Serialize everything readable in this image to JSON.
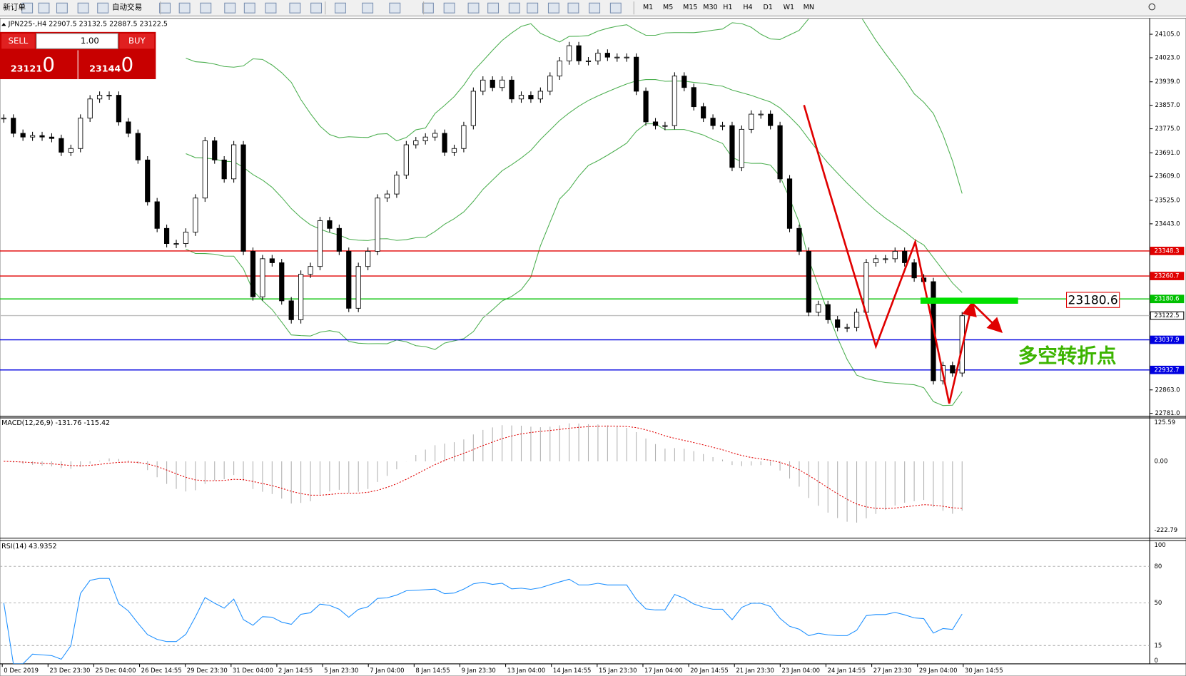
{
  "toolbar": {
    "new_order": "新订单",
    "auto_trading": "自动交易",
    "timeframes": [
      "M1",
      "M5",
      "M15",
      "M30",
      "H1",
      "H4",
      "D1",
      "W1",
      "MN"
    ]
  },
  "trade_panel": {
    "sell": "SELL",
    "buy": "BUY",
    "lots": "1.00",
    "bid_main": "23121",
    "bid_big": "0",
    "ask_main": "23144",
    "ask_big": "0"
  },
  "chart_header": "JPN225-,H4  22907.5 23132.5 22887.5 23122.5",
  "price_chart": {
    "closes": [
      23812,
      23759,
      23746,
      23751,
      23746,
      23741,
      23693,
      23706,
      23812,
      23879,
      23892,
      23892,
      23799,
      23759,
      23666,
      23520,
      23427,
      23374,
      23374,
      23414,
      23533,
      23733,
      23666,
      23600,
      23719,
      23347,
      23188,
      23321,
      23307,
      23174,
      23108,
      23267,
      23294,
      23454,
      23427,
      23347,
      23148,
      23294,
      23347,
      23533,
      23547,
      23613,
      23719,
      23733,
      23746,
      23759,
      23693,
      23706,
      23786,
      23906,
      23945,
      23919,
      23945,
      23879,
      23892,
      23879,
      23906,
      23959,
      24012,
      24065,
      24012,
      24012,
      24039,
      24025,
      24025,
      24025,
      23906,
      23799,
      23786,
      23786,
      23959,
      23919,
      23852,
      23812,
      23786,
      23786,
      23640,
      23773,
      23826,
      23826,
      23786,
      23600,
      23427,
      23347,
      23134,
      23161,
      23108,
      23081,
      23081,
      23134,
      23307,
      23321,
      23321,
      23347,
      23307,
      23254,
      23241,
      22895,
      22948,
      22922,
      23122
    ],
    "axis_labels": [
      "24105.0",
      "24023.0",
      "23939.0",
      "23857.0",
      "23775.0",
      "23691.0",
      "23609.0",
      "23525.0",
      "23443.0",
      "22863.0",
      "22781.0"
    ],
    "price_lines": [
      {
        "label": "23348.3",
        "color": "#e00000"
      },
      {
        "label": "23260.7",
        "color": "#e00000"
      },
      {
        "label": "23180.6",
        "color": "#00c000"
      },
      {
        "label": "23122.5",
        "color": "#c0c0c0"
      },
      {
        "label": "23037.9",
        "color": "#0000e0"
      },
      {
        "label": "22932.7",
        "color": "#0000e0"
      }
    ],
    "annotation_price": "23180.6",
    "annotation_text": "多空转折点"
  },
  "macd": {
    "title": "MACD(12,26,9) -131.76 -115.42",
    "axis_labels": [
      "125.59",
      "0.00",
      "-222.79"
    ]
  },
  "rsi": {
    "title": "RSI(14) 43.9352",
    "axis_labels": [
      "100",
      "80",
      "50",
      "15",
      "0"
    ]
  },
  "time_labels": [
    "0 Dec 2019",
    "23 Dec 23:30",
    "25 Dec 04:00",
    "26 Dec 14:55",
    "29 Dec 23:30",
    "31 Dec 04:00",
    "2 Jan 14:55",
    "5 Jan 23:30",
    "7 Jan 04:00",
    "8 Jan 14:55",
    "9 Jan 23:30",
    "13 Jan 04:00",
    "14 Jan 14:55",
    "15 Jan 23:30",
    "17 Jan 04:00",
    "20 Jan 14:55",
    "21 Jan 23:30",
    "23 Jan 04:00",
    "24 Jan 14:55",
    "27 Jan 23:30",
    "29 Jan 04:00",
    "30 Jan 14:55"
  ]
}
